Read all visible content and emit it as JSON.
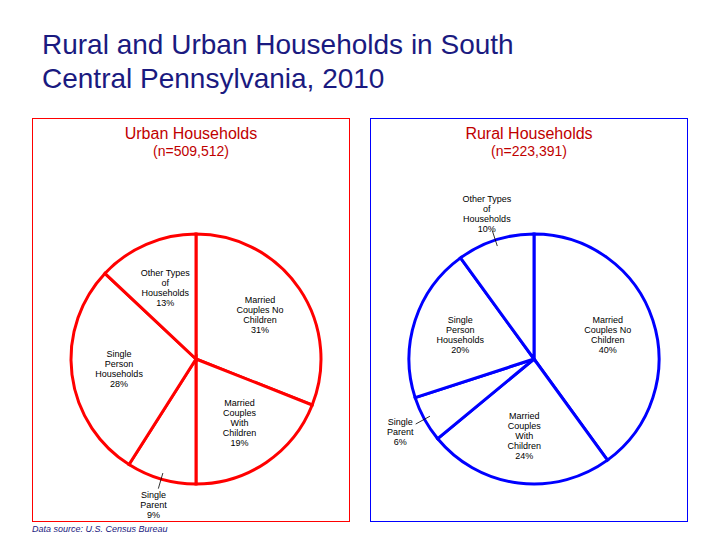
{
  "title": "Rural and Urban Households in South Central Pennsylvania, 2010",
  "source": "Data source: U.S. Census Bureau",
  "chart_data": [
    {
      "type": "pie",
      "title": "Urban Households",
      "subtitle": "(n=509,512)",
      "categories": [
        "Married Couples No Children",
        "Married Couples With Children",
        "Single Parent",
        "Single Person Households",
        "Other Types of Households"
      ],
      "values": [
        31,
        19,
        9,
        28,
        13
      ],
      "value_labels": [
        "31%",
        "19%",
        "9%",
        "28%",
        "13%"
      ],
      "color": "#ff0000",
      "data_labels": true
    },
    {
      "type": "pie",
      "title": "Rural Households",
      "subtitle": "(n=223,391)",
      "categories": [
        "Married Couples No Children",
        "Married Couples With Children",
        "Single Parent",
        "Single Person Households",
        "Other Types of Households"
      ],
      "values": [
        40,
        24,
        6,
        20,
        10
      ],
      "value_labels": [
        "40%",
        "24%",
        "6%",
        "20%",
        "10%"
      ],
      "color": "#0000ff",
      "data_labels": true
    }
  ]
}
